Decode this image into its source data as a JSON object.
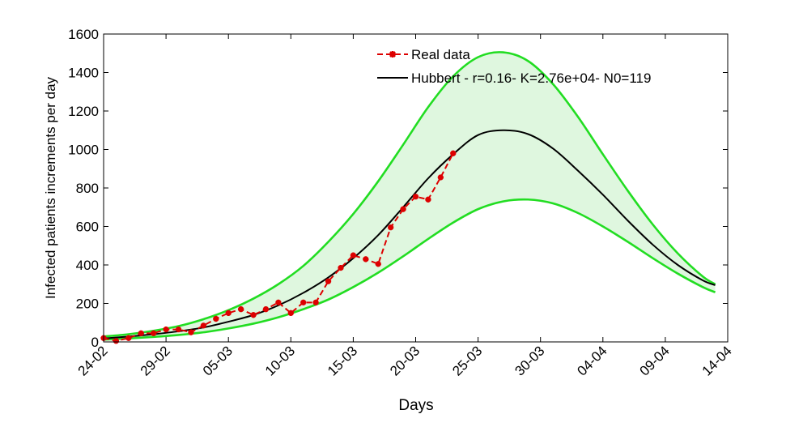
{
  "chart_data": {
    "type": "line",
    "title": "",
    "xlabel": "Days",
    "ylabel": "Infected patients increments per day",
    "xlim": [
      0,
      50
    ],
    "ylim": [
      0,
      1600
    ],
    "x_ticks": [
      0,
      5,
      10,
      15,
      20,
      25,
      30,
      35,
      40,
      45,
      50
    ],
    "x_tick_labels": [
      "24-02",
      "29-02",
      "05-03",
      "10-03",
      "15-03",
      "20-03",
      "25-03",
      "30-03",
      "04-04",
      "09-04",
      "14-04"
    ],
    "y_ticks": [
      0,
      200,
      400,
      600,
      800,
      1000,
      1200,
      1400,
      1600
    ],
    "y_tick_labels": [
      "0",
      "200",
      "400",
      "600",
      "800",
      "1000",
      "1200",
      "1400",
      "1600"
    ],
    "legend": {
      "position": "top-right",
      "entries": [
        "Real data",
        "Hubbert - r=0.16- K=2.76e+04- N0=119"
      ]
    },
    "series": [
      {
        "name": "Real data",
        "style": "red dashed with star markers",
        "color": "#dd0000",
        "x": [
          0,
          1,
          2,
          3,
          4,
          5,
          6,
          7,
          8,
          9,
          10,
          11,
          12,
          13,
          14,
          15,
          16,
          17,
          18,
          19,
          20,
          21,
          22,
          23,
          24,
          25,
          26,
          27,
          28
        ],
        "values": [
          20,
          5,
          20,
          45,
          45,
          65,
          65,
          50,
          85,
          120,
          150,
          170,
          140,
          170,
          205,
          150,
          205,
          205,
          315,
          385,
          450,
          430,
          405,
          595,
          690,
          755,
          740,
          855,
          980
        ]
      },
      {
        "name": "Hubbert - r=0.16- K=2.76e+04- N0=119",
        "style": "black solid",
        "color": "#000000",
        "x": [
          0,
          2,
          4,
          6,
          8,
          10,
          12,
          14,
          16,
          18,
          20,
          22,
          24,
          26,
          28,
          30,
          32,
          34,
          36,
          38,
          40,
          42,
          44,
          46,
          48,
          49
        ],
        "values": [
          18,
          28,
          40,
          55,
          75,
          105,
          140,
          190,
          255,
          335,
          435,
          555,
          700,
          850,
          975,
          1075,
          1100,
          1080,
          1005,
          890,
          765,
          630,
          505,
          400,
          320,
          295
        ]
      },
      {
        "name": "Upper bound",
        "style": "green solid",
        "color": "#22dd22",
        "x": [
          0,
          2,
          4,
          6,
          8,
          10,
          12,
          14,
          16,
          18,
          20,
          22,
          24,
          26,
          28,
          30,
          32,
          34,
          36,
          38,
          40,
          42,
          44,
          46,
          48,
          49
        ],
        "values": [
          28,
          40,
          58,
          82,
          118,
          165,
          225,
          300,
          395,
          520,
          665,
          835,
          1025,
          1220,
          1380,
          1480,
          1505,
          1460,
          1340,
          1170,
          975,
          785,
          610,
          460,
          340,
          300
        ]
      },
      {
        "name": "Lower bound",
        "style": "green solid",
        "color": "#22dd22",
        "x": [
          0,
          2,
          4,
          6,
          8,
          10,
          12,
          14,
          16,
          18,
          20,
          22,
          24,
          26,
          28,
          30,
          32,
          34,
          36,
          38,
          40,
          42,
          44,
          46,
          48,
          49
        ],
        "values": [
          12,
          18,
          26,
          36,
          50,
          70,
          95,
          128,
          170,
          220,
          285,
          360,
          445,
          535,
          620,
          690,
          730,
          740,
          720,
          670,
          600,
          520,
          435,
          355,
          285,
          258
        ]
      }
    ],
    "band_fill_color": "#dff7df"
  }
}
